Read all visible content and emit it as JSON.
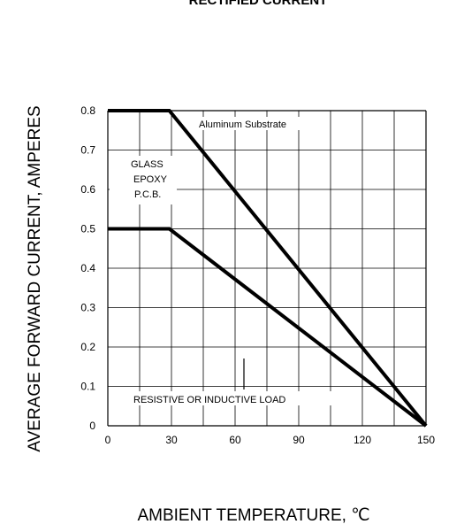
{
  "chart_data": {
    "type": "line",
    "title": "RECTIFIED CURRENT",
    "xlabel": "AMBIENT TEMPERATURE, ℃",
    "ylabel": "AVERAGE FORWARD CURRENT,  AMPERES",
    "xlim": [
      0,
      150
    ],
    "ylim": [
      0,
      0.8
    ],
    "xticks": [
      0,
      30,
      60,
      90,
      120,
      150
    ],
    "yticks": [
      0,
      0.1,
      0.2,
      0.3,
      0.4,
      0.5,
      0.6,
      0.7,
      0.8
    ],
    "grid": true,
    "series": [
      {
        "name": "Aluminum Substrate",
        "x": [
          0,
          29,
          150
        ],
        "y": [
          0.8,
          0.8,
          0
        ]
      },
      {
        "name": "",
        "x": [
          0,
          29,
          150
        ],
        "y": [
          0.5,
          0.5,
          0
        ]
      }
    ],
    "annotations": {
      "aluminum": "Aluminum Substrate",
      "glass": [
        "GLASS",
        "EPOXY",
        "P.C.B."
      ],
      "load": "RESISTIVE OR INDUCTIVE LOAD"
    }
  }
}
